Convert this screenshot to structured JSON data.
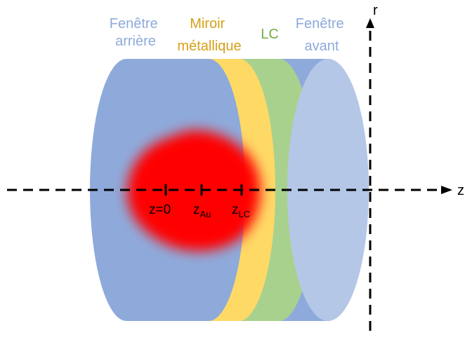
{
  "colors": {
    "back_window": "#8eaadb",
    "mirror": "#ffd966",
    "lc": "#a9d18e",
    "front_window_rim": "#8eaadb",
    "front_window_face": "#b4c7e7",
    "beam": "#ff0000",
    "back_window_label": "#8eaadb",
    "mirror_label": "#d4a017",
    "lc_label": "#70ad47",
    "front_window_label": "#8eaadb"
  },
  "labels": {
    "back_window": [
      "Fenêtre",
      "arrière"
    ],
    "mirror": [
      "Miroir",
      "métallique"
    ],
    "lc": "LC",
    "front_window": [
      "Fenêtre",
      "avant"
    ]
  },
  "axes": {
    "r": "r",
    "z": "z"
  },
  "ticks": {
    "z0": "z=0",
    "zau_main": "z",
    "zau_sub": "Au",
    "zlc_main": "z",
    "zlc_sub": "LC"
  }
}
